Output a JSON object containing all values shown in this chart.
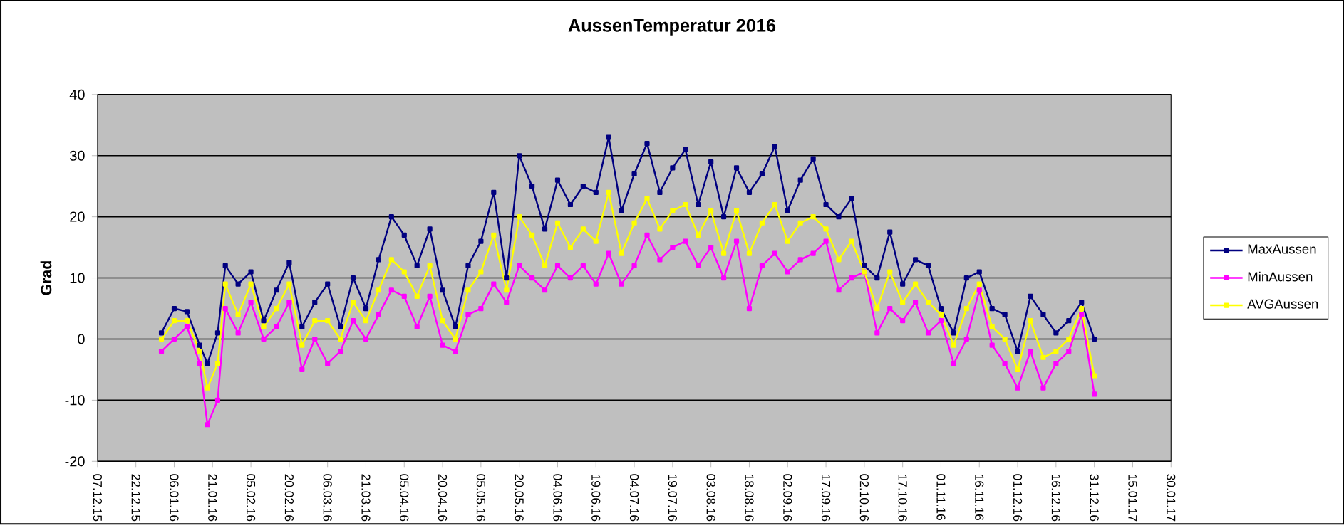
{
  "chart_data": {
    "type": "line",
    "title": "AussenTemperatur 2016",
    "ylabel": "Grad",
    "x": [
      "2016-01-01",
      "2016-01-06",
      "2016-01-11",
      "2016-01-16",
      "2016-01-19",
      "2016-01-23",
      "2016-01-26",
      "2016-01-31",
      "2016-02-05",
      "2016-02-10",
      "2016-02-15",
      "2016-02-20",
      "2016-02-25",
      "2016-03-01",
      "2016-03-06",
      "2016-03-11",
      "2016-03-16",
      "2016-03-21",
      "2016-03-26",
      "2016-03-31",
      "2016-04-05",
      "2016-04-10",
      "2016-04-15",
      "2016-04-20",
      "2016-04-25",
      "2016-04-30",
      "2016-05-05",
      "2016-05-10",
      "2016-05-15",
      "2016-05-20",
      "2016-05-25",
      "2016-05-30",
      "2016-06-04",
      "2016-06-09",
      "2016-06-14",
      "2016-06-19",
      "2016-06-24",
      "2016-06-29",
      "2016-07-04",
      "2016-07-09",
      "2016-07-14",
      "2016-07-19",
      "2016-07-24",
      "2016-07-29",
      "2016-08-03",
      "2016-08-08",
      "2016-08-13",
      "2016-08-18",
      "2016-08-23",
      "2016-08-28",
      "2016-09-02",
      "2016-09-07",
      "2016-09-12",
      "2016-09-17",
      "2016-09-22",
      "2016-09-27",
      "2016-10-02",
      "2016-10-07",
      "2016-10-12",
      "2016-10-17",
      "2016-10-22",
      "2016-10-27",
      "2016-11-01",
      "2016-11-06",
      "2016-11-11",
      "2016-11-16",
      "2016-11-21",
      "2016-11-26",
      "2016-12-01",
      "2016-12-06",
      "2016-12-11",
      "2016-12-16",
      "2016-12-21",
      "2016-12-26",
      "2016-12-31"
    ],
    "series": [
      {
        "name": "MaxAussen",
        "color": "#000080",
        "values": [
          1,
          5,
          4.5,
          -1,
          -4,
          1,
          12,
          9,
          11,
          3,
          8,
          12.5,
          2,
          6,
          9,
          2,
          10,
          5,
          13,
          20,
          17,
          12,
          18,
          8,
          2,
          12,
          16,
          24,
          10,
          30,
          25,
          18,
          26,
          22,
          25,
          24,
          33,
          21,
          27,
          32,
          24,
          28,
          31,
          22,
          29,
          20,
          28,
          24,
          27,
          31.5,
          21,
          26,
          29.5,
          22,
          20,
          23,
          12,
          10,
          17.5,
          9,
          13,
          12,
          5,
          1,
          10,
          11,
          5,
          4,
          -2,
          7,
          4,
          1,
          3,
          6,
          0
        ]
      },
      {
        "name": "MinAussen",
        "color": "#ff00ff",
        "values": [
          -2,
          0,
          2,
          -4,
          -14,
          -10,
          5,
          1,
          6,
          0,
          2,
          6,
          -5,
          0,
          -4,
          -2,
          3,
          0,
          4,
          8,
          7,
          2,
          7,
          -1,
          -2,
          4,
          5,
          9,
          6,
          12,
          10,
          8,
          12,
          10,
          12,
          9,
          14,
          9,
          12,
          17,
          13,
          15,
          16,
          12,
          15,
          10,
          16,
          5,
          12,
          14,
          11,
          13,
          14,
          16,
          8,
          10,
          11,
          1,
          5,
          3,
          6,
          1,
          3,
          -4,
          0,
          8,
          -1,
          -4,
          -8,
          -2,
          -8,
          -4,
          -2,
          4,
          -9
        ]
      },
      {
        "name": "AVGAussen",
        "color": "#ffff00",
        "values": [
          0,
          3,
          3,
          -2,
          -8,
          -4,
          9,
          4,
          9,
          2,
          5,
          9,
          -1,
          3,
          3,
          0,
          6,
          3,
          8,
          13,
          11,
          7,
          12,
          3,
          0,
          8,
          11,
          17,
          8,
          20,
          17,
          12,
          19,
          15,
          18,
          16,
          24,
          14,
          19,
          23,
          18,
          21,
          22,
          17,
          21,
          14,
          21,
          14,
          19,
          22,
          16,
          19,
          20,
          18,
          13,
          16,
          11,
          5,
          11,
          6,
          9,
          6,
          4,
          -1,
          5,
          9,
          2,
          0,
          -5,
          3,
          -3,
          -2,
          0,
          5,
          -6
        ]
      }
    ],
    "ylim": [
      -20,
      40
    ],
    "yticks": [
      -20,
      -10,
      0,
      10,
      20,
      30,
      40
    ],
    "xlim": [
      "2015-12-07",
      "2017-01-30"
    ],
    "xticks": [
      {
        "value": "2015-12-07",
        "label": "07.12.15"
      },
      {
        "value": "2015-12-22",
        "label": "22.12.15"
      },
      {
        "value": "2016-01-06",
        "label": "06.01.16"
      },
      {
        "value": "2016-01-21",
        "label": "21.01.16"
      },
      {
        "value": "2016-02-05",
        "label": "05.02.16"
      },
      {
        "value": "2016-02-20",
        "label": "20.02.16"
      },
      {
        "value": "2016-03-06",
        "label": "06.03.16"
      },
      {
        "value": "2016-03-21",
        "label": "21.03.16"
      },
      {
        "value": "2016-04-05",
        "label": "05.04.16"
      },
      {
        "value": "2016-04-20",
        "label": "20.04.16"
      },
      {
        "value": "2016-05-05",
        "label": "05.05.16"
      },
      {
        "value": "2016-05-20",
        "label": "20.05.16"
      },
      {
        "value": "2016-06-04",
        "label": "04.06.16"
      },
      {
        "value": "2016-06-19",
        "label": "19.06.16"
      },
      {
        "value": "2016-07-04",
        "label": "04.07.16"
      },
      {
        "value": "2016-07-19",
        "label": "19.07.16"
      },
      {
        "value": "2016-08-03",
        "label": "03.08.16"
      },
      {
        "value": "2016-08-18",
        "label": "18.08.16"
      },
      {
        "value": "2016-09-02",
        "label": "02.09.16"
      },
      {
        "value": "2016-09-17",
        "label": "17.09.16"
      },
      {
        "value": "2016-10-02",
        "label": "02.10.16"
      },
      {
        "value": "2016-10-17",
        "label": "17.10.16"
      },
      {
        "value": "2016-11-01",
        "label": "01.11.16"
      },
      {
        "value": "2016-11-16",
        "label": "16.11.16"
      },
      {
        "value": "2016-12-01",
        "label": "01.12.16"
      },
      {
        "value": "2016-12-16",
        "label": "16.12.16"
      },
      {
        "value": "2016-12-31",
        "label": "31.12.16"
      },
      {
        "value": "2017-01-15",
        "label": "15.01.17"
      },
      {
        "value": "2017-01-30",
        "label": "30.01.17"
      }
    ],
    "grid": "y",
    "legend": "right",
    "marker": "square",
    "line_style": "solid"
  }
}
